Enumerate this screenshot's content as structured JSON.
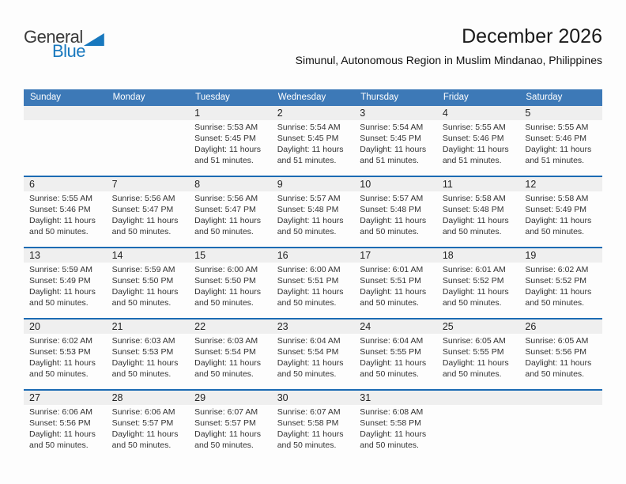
{
  "logo": {
    "general": "General",
    "blue": "Blue"
  },
  "title": "December 2026",
  "subtitle": "Simunul, Autonomous Region in Muslim Mindanao, Philippines",
  "weekdays": [
    "Sunday",
    "Monday",
    "Tuesday",
    "Wednesday",
    "Thursday",
    "Friday",
    "Saturday"
  ],
  "colors": {
    "header_blue": "#3d79b7",
    "divider_blue": "#1c6bb3",
    "strip_gray": "#efefef",
    "brand_blue": "#1878be"
  },
  "weeks": [
    [
      null,
      null,
      {
        "day": "1",
        "sunrise": "Sunrise: 5:53 AM",
        "sunset": "Sunset: 5:45 PM",
        "daylight": "Daylight: 11 hours and 51 minutes."
      },
      {
        "day": "2",
        "sunrise": "Sunrise: 5:54 AM",
        "sunset": "Sunset: 5:45 PM",
        "daylight": "Daylight: 11 hours and 51 minutes."
      },
      {
        "day": "3",
        "sunrise": "Sunrise: 5:54 AM",
        "sunset": "Sunset: 5:45 PM",
        "daylight": "Daylight: 11 hours and 51 minutes."
      },
      {
        "day": "4",
        "sunrise": "Sunrise: 5:55 AM",
        "sunset": "Sunset: 5:46 PM",
        "daylight": "Daylight: 11 hours and 51 minutes."
      },
      {
        "day": "5",
        "sunrise": "Sunrise: 5:55 AM",
        "sunset": "Sunset: 5:46 PM",
        "daylight": "Daylight: 11 hours and 51 minutes."
      }
    ],
    [
      {
        "day": "6",
        "sunrise": "Sunrise: 5:55 AM",
        "sunset": "Sunset: 5:46 PM",
        "daylight": "Daylight: 11 hours and 50 minutes."
      },
      {
        "day": "7",
        "sunrise": "Sunrise: 5:56 AM",
        "sunset": "Sunset: 5:47 PM",
        "daylight": "Daylight: 11 hours and 50 minutes."
      },
      {
        "day": "8",
        "sunrise": "Sunrise: 5:56 AM",
        "sunset": "Sunset: 5:47 PM",
        "daylight": "Daylight: 11 hours and 50 minutes."
      },
      {
        "day": "9",
        "sunrise": "Sunrise: 5:57 AM",
        "sunset": "Sunset: 5:48 PM",
        "daylight": "Daylight: 11 hours and 50 minutes."
      },
      {
        "day": "10",
        "sunrise": "Sunrise: 5:57 AM",
        "sunset": "Sunset: 5:48 PM",
        "daylight": "Daylight: 11 hours and 50 minutes."
      },
      {
        "day": "11",
        "sunrise": "Sunrise: 5:58 AM",
        "sunset": "Sunset: 5:48 PM",
        "daylight": "Daylight: 11 hours and 50 minutes."
      },
      {
        "day": "12",
        "sunrise": "Sunrise: 5:58 AM",
        "sunset": "Sunset: 5:49 PM",
        "daylight": "Daylight: 11 hours and 50 minutes."
      }
    ],
    [
      {
        "day": "13",
        "sunrise": "Sunrise: 5:59 AM",
        "sunset": "Sunset: 5:49 PM",
        "daylight": "Daylight: 11 hours and 50 minutes."
      },
      {
        "day": "14",
        "sunrise": "Sunrise: 5:59 AM",
        "sunset": "Sunset: 5:50 PM",
        "daylight": "Daylight: 11 hours and 50 minutes."
      },
      {
        "day": "15",
        "sunrise": "Sunrise: 6:00 AM",
        "sunset": "Sunset: 5:50 PM",
        "daylight": "Daylight: 11 hours and 50 minutes."
      },
      {
        "day": "16",
        "sunrise": "Sunrise: 6:00 AM",
        "sunset": "Sunset: 5:51 PM",
        "daylight": "Daylight: 11 hours and 50 minutes."
      },
      {
        "day": "17",
        "sunrise": "Sunrise: 6:01 AM",
        "sunset": "Sunset: 5:51 PM",
        "daylight": "Daylight: 11 hours and 50 minutes."
      },
      {
        "day": "18",
        "sunrise": "Sunrise: 6:01 AM",
        "sunset": "Sunset: 5:52 PM",
        "daylight": "Daylight: 11 hours and 50 minutes."
      },
      {
        "day": "19",
        "sunrise": "Sunrise: 6:02 AM",
        "sunset": "Sunset: 5:52 PM",
        "daylight": "Daylight: 11 hours and 50 minutes."
      }
    ],
    [
      {
        "day": "20",
        "sunrise": "Sunrise: 6:02 AM",
        "sunset": "Sunset: 5:53 PM",
        "daylight": "Daylight: 11 hours and 50 minutes."
      },
      {
        "day": "21",
        "sunrise": "Sunrise: 6:03 AM",
        "sunset": "Sunset: 5:53 PM",
        "daylight": "Daylight: 11 hours and 50 minutes."
      },
      {
        "day": "22",
        "sunrise": "Sunrise: 6:03 AM",
        "sunset": "Sunset: 5:54 PM",
        "daylight": "Daylight: 11 hours and 50 minutes."
      },
      {
        "day": "23",
        "sunrise": "Sunrise: 6:04 AM",
        "sunset": "Sunset: 5:54 PM",
        "daylight": "Daylight: 11 hours and 50 minutes."
      },
      {
        "day": "24",
        "sunrise": "Sunrise: 6:04 AM",
        "sunset": "Sunset: 5:55 PM",
        "daylight": "Daylight: 11 hours and 50 minutes."
      },
      {
        "day": "25",
        "sunrise": "Sunrise: 6:05 AM",
        "sunset": "Sunset: 5:55 PM",
        "daylight": "Daylight: 11 hours and 50 minutes."
      },
      {
        "day": "26",
        "sunrise": "Sunrise: 6:05 AM",
        "sunset": "Sunset: 5:56 PM",
        "daylight": "Daylight: 11 hours and 50 minutes."
      }
    ],
    [
      {
        "day": "27",
        "sunrise": "Sunrise: 6:06 AM",
        "sunset": "Sunset: 5:56 PM",
        "daylight": "Daylight: 11 hours and 50 minutes."
      },
      {
        "day": "28",
        "sunrise": "Sunrise: 6:06 AM",
        "sunset": "Sunset: 5:57 PM",
        "daylight": "Daylight: 11 hours and 50 minutes."
      },
      {
        "day": "29",
        "sunrise": "Sunrise: 6:07 AM",
        "sunset": "Sunset: 5:57 PM",
        "daylight": "Daylight: 11 hours and 50 minutes."
      },
      {
        "day": "30",
        "sunrise": "Sunrise: 6:07 AM",
        "sunset": "Sunset: 5:58 PM",
        "daylight": "Daylight: 11 hours and 50 minutes."
      },
      {
        "day": "31",
        "sunrise": "Sunrise: 6:08 AM",
        "sunset": "Sunset: 5:58 PM",
        "daylight": "Daylight: 11 hours and 50 minutes."
      },
      null,
      null
    ]
  ]
}
